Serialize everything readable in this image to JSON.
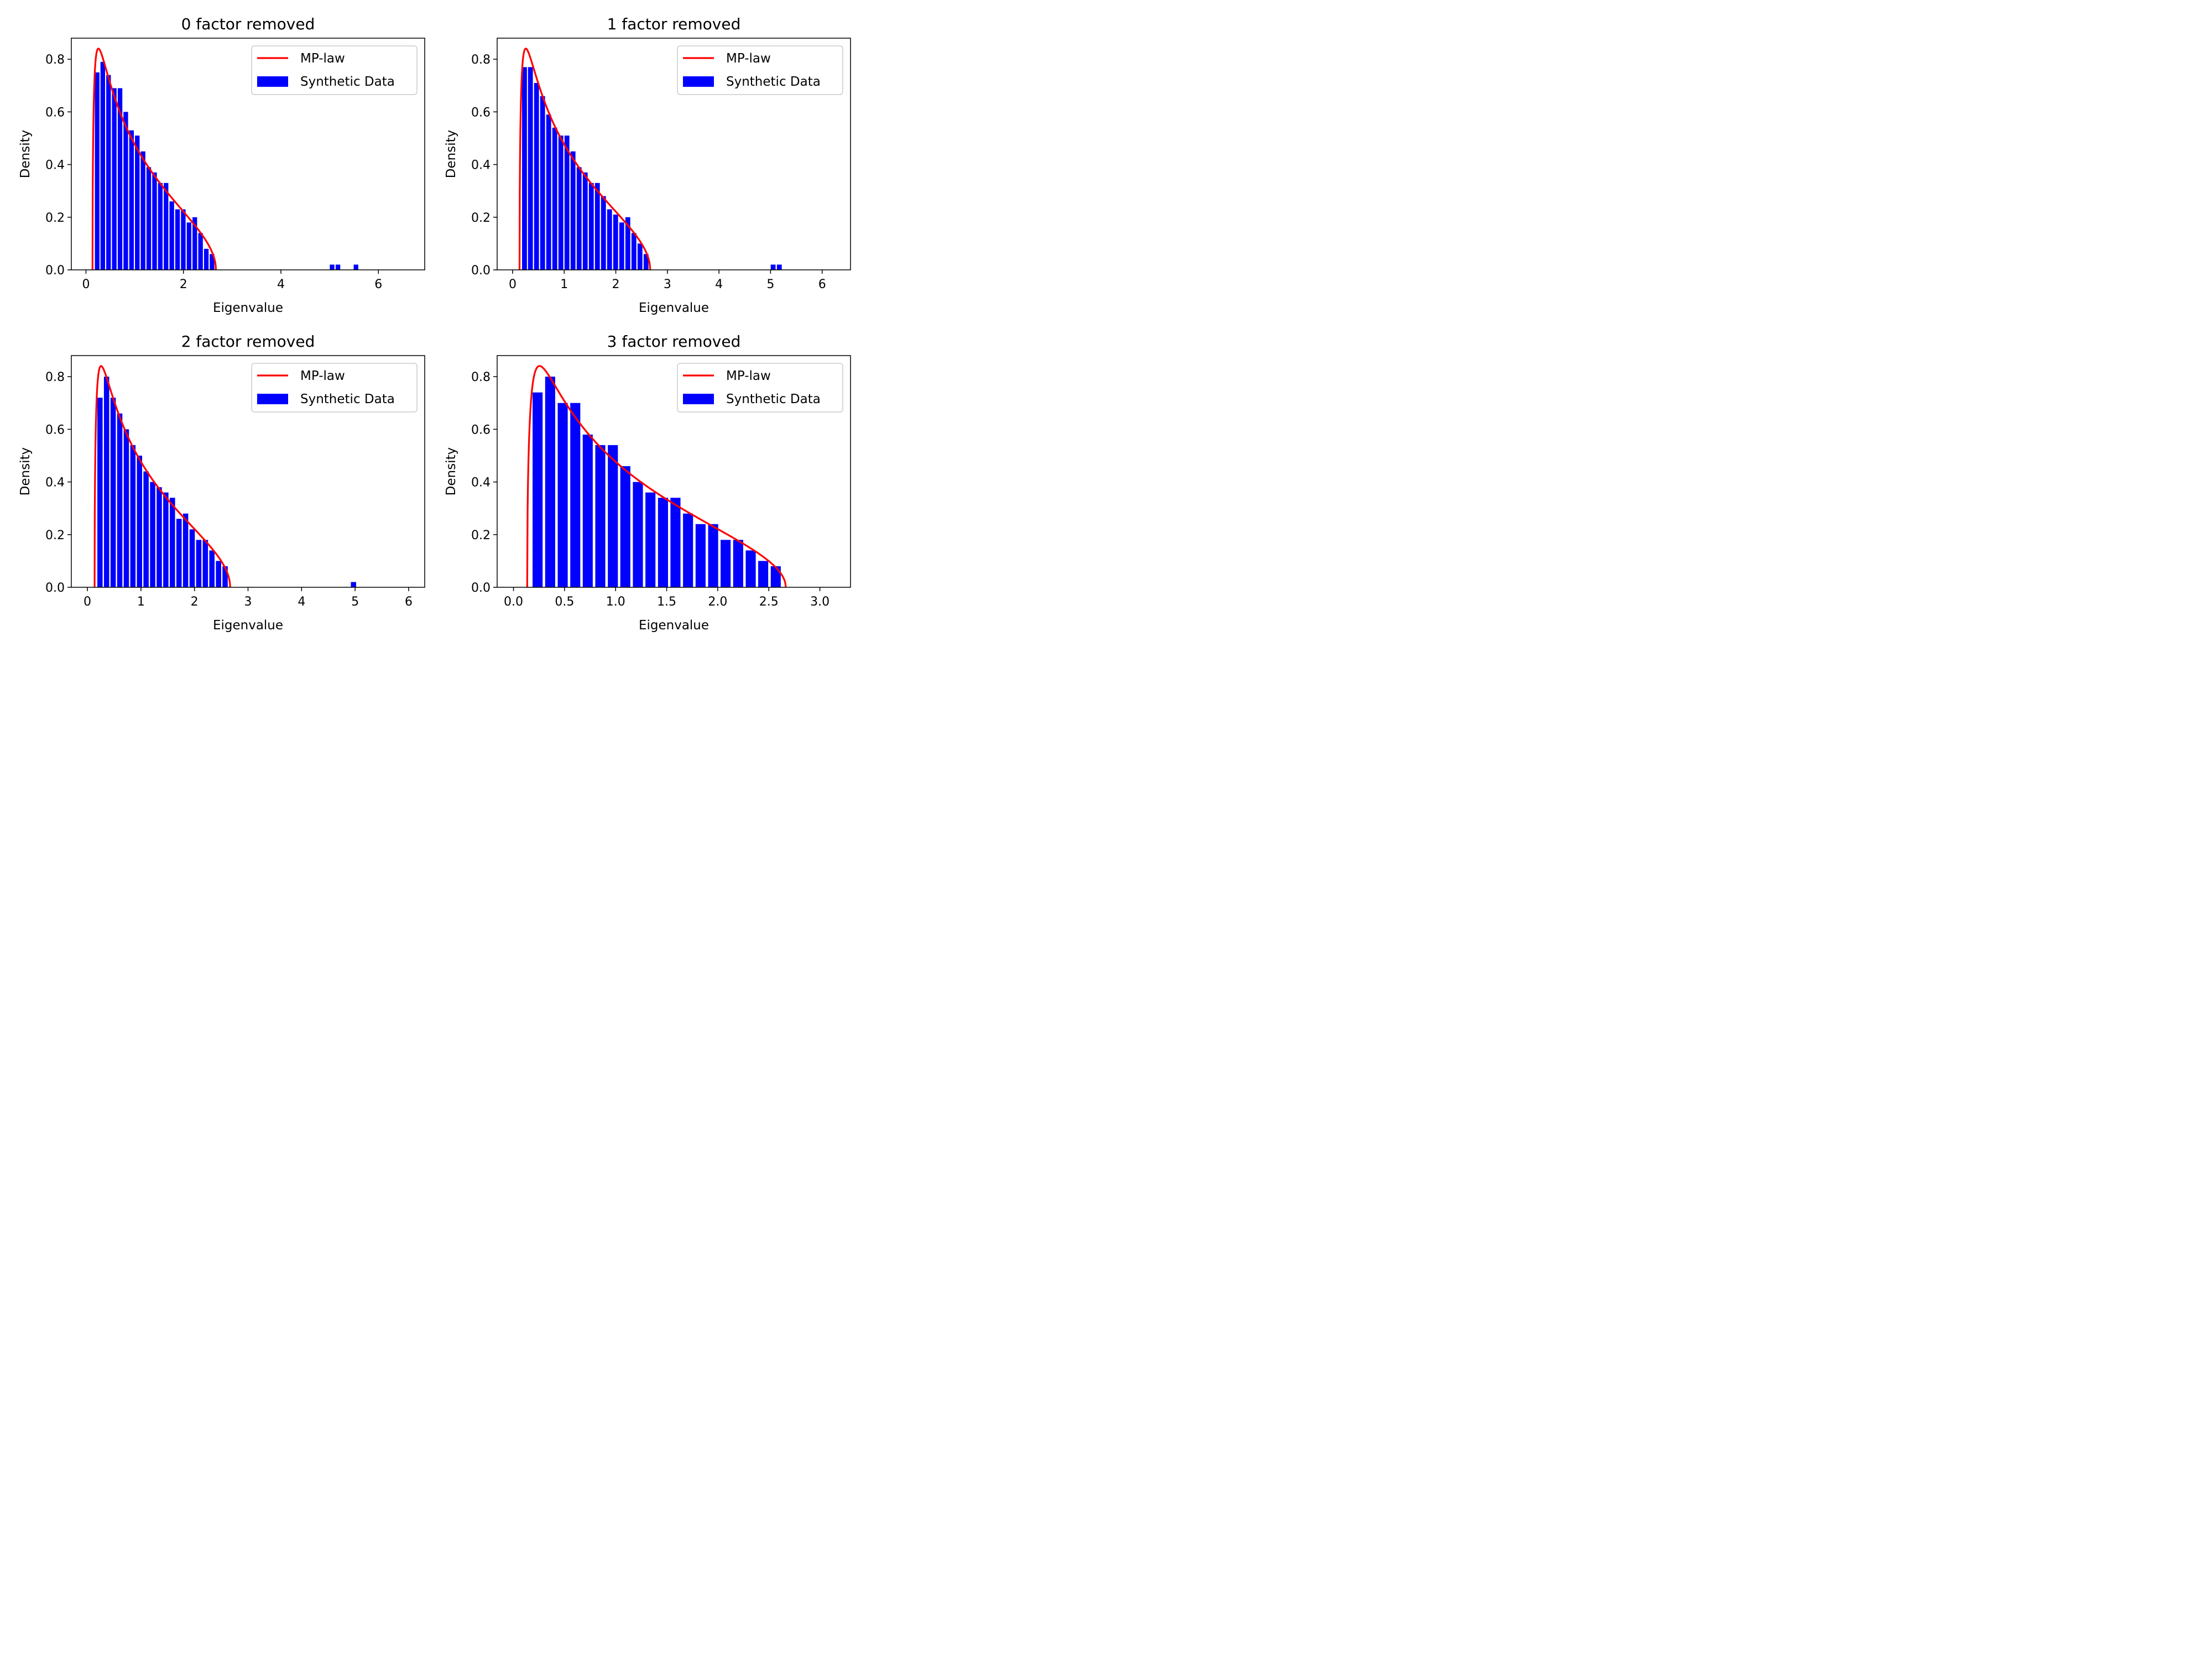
{
  "chart_data": [
    {
      "type": "bar",
      "title": "0 factor removed",
      "xlabel": "Eigenvalue",
      "ylabel": "Density",
      "xlim": [
        -0.3,
        6.95
      ],
      "ylim": [
        0,
        0.88
      ],
      "xticks": [
        0,
        2,
        4,
        6
      ],
      "xtick_labels": [
        "0",
        "2",
        "4",
        "6"
      ],
      "yticks": [
        0.0,
        0.2,
        0.4,
        0.6,
        0.8
      ],
      "ytick_labels": [
        "0.0",
        "0.2",
        "0.4",
        "0.6",
        "0.8"
      ],
      "legend": {
        "position": "upper right",
        "entries": [
          "MP-law",
          "Synthetic Data"
        ]
      },
      "mp_range": [
        0.134,
        2.666
      ],
      "series": [
        {
          "name": "MP-law",
          "kind": "line",
          "color": "#ff0000"
        },
        {
          "name": "Synthetic Data",
          "kind": "bar",
          "color": "#0000ff",
          "bin_width": 0.118,
          "x": [
            0.23,
            0.345,
            0.463,
            0.581,
            0.699,
            0.817,
            0.935,
            1.053,
            1.171,
            1.289,
            1.407,
            1.525,
            1.643,
            1.761,
            1.879,
            1.997,
            2.115,
            2.233,
            2.351,
            2.469,
            2.587,
            5.05,
            5.17,
            5.54
          ],
          "values": [
            0.75,
            0.79,
            0.74,
            0.69,
            0.69,
            0.6,
            0.53,
            0.51,
            0.45,
            0.39,
            0.37,
            0.33,
            0.33,
            0.26,
            0.23,
            0.23,
            0.18,
            0.2,
            0.14,
            0.08,
            0.06,
            0.02,
            0.02,
            0.02
          ]
        }
      ]
    },
    {
      "type": "bar",
      "title": "1 factor removed",
      "xlabel": "Eigenvalue",
      "ylabel": "Density",
      "xlim": [
        -0.3,
        6.55
      ],
      "ylim": [
        0,
        0.88
      ],
      "xticks": [
        0,
        1,
        2,
        3,
        4,
        5,
        6
      ],
      "xtick_labels": [
        "0",
        "1",
        "2",
        "3",
        "4",
        "5",
        "6"
      ],
      "yticks": [
        0.0,
        0.2,
        0.4,
        0.6,
        0.8
      ],
      "ytick_labels": [
        "0.0",
        "0.2",
        "0.4",
        "0.6",
        "0.8"
      ],
      "legend": {
        "position": "upper right",
        "entries": [
          "MP-law",
          "Synthetic Data"
        ]
      },
      "mp_range": [
        0.134,
        2.666
      ],
      "series": [
        {
          "name": "MP-law",
          "kind": "line",
          "color": "#ff0000"
        },
        {
          "name": "Synthetic Data",
          "kind": "bar",
          "color": "#0000ff",
          "bin_width": 0.118,
          "x": [
            0.23,
            0.345,
            0.463,
            0.581,
            0.699,
            0.817,
            0.935,
            1.053,
            1.171,
            1.289,
            1.407,
            1.525,
            1.643,
            1.761,
            1.879,
            1.997,
            2.115,
            2.233,
            2.351,
            2.469,
            2.587,
            5.05,
            5.17
          ],
          "values": [
            0.77,
            0.77,
            0.71,
            0.66,
            0.59,
            0.54,
            0.51,
            0.51,
            0.45,
            0.39,
            0.37,
            0.33,
            0.33,
            0.28,
            0.23,
            0.21,
            0.18,
            0.2,
            0.14,
            0.1,
            0.06,
            0.02,
            0.02
          ]
        }
      ]
    },
    {
      "type": "bar",
      "title": "2 factor removed",
      "xlabel": "Eigenvalue",
      "ylabel": "Density",
      "xlim": [
        -0.3,
        6.3
      ],
      "ylim": [
        0,
        0.88
      ],
      "xticks": [
        0,
        1,
        2,
        3,
        4,
        5,
        6
      ],
      "xtick_labels": [
        "0",
        "1",
        "2",
        "3",
        "4",
        "5",
        "6"
      ],
      "yticks": [
        0.0,
        0.2,
        0.4,
        0.6,
        0.8
      ],
      "ytick_labels": [
        "0.0",
        "0.2",
        "0.4",
        "0.6",
        "0.8"
      ],
      "legend": {
        "position": "upper right",
        "entries": [
          "MP-law",
          "Synthetic Data"
        ]
      },
      "mp_range": [
        0.134,
        2.666
      ],
      "series": [
        {
          "name": "MP-law",
          "kind": "line",
          "color": "#ff0000"
        },
        {
          "name": "Synthetic Data",
          "kind": "bar",
          "color": "#0000ff",
          "bin_width": 0.123,
          "x": [
            0.235,
            0.358,
            0.481,
            0.604,
            0.727,
            0.85,
            0.973,
            1.096,
            1.219,
            1.342,
            1.465,
            1.588,
            1.711,
            1.834,
            1.957,
            2.08,
            2.203,
            2.326,
            2.449,
            2.572,
            4.97
          ],
          "values": [
            0.72,
            0.8,
            0.72,
            0.66,
            0.6,
            0.54,
            0.5,
            0.44,
            0.4,
            0.38,
            0.36,
            0.34,
            0.26,
            0.28,
            0.22,
            0.18,
            0.18,
            0.14,
            0.1,
            0.08,
            0.02
          ]
        }
      ]
    },
    {
      "type": "bar",
      "title": "3 factor removed",
      "xlabel": "Eigenvalue",
      "ylabel": "Density",
      "xlim": [
        -0.16,
        3.3
      ],
      "ylim": [
        0,
        0.88
      ],
      "xticks": [
        0.0,
        0.5,
        1.0,
        1.5,
        2.0,
        2.5,
        3.0
      ],
      "xtick_labels": [
        "0.0",
        "0.5",
        "1.0",
        "1.5",
        "2.0",
        "2.5",
        "3.0"
      ],
      "yticks": [
        0.0,
        0.2,
        0.4,
        0.6,
        0.8
      ],
      "ytick_labels": [
        "0.0",
        "0.2",
        "0.4",
        "0.6",
        "0.8"
      ],
      "legend": {
        "position": "upper right",
        "entries": [
          "MP-law",
          "Synthetic Data"
        ]
      },
      "mp_range": [
        0.134,
        2.666
      ],
      "series": [
        {
          "name": "MP-law",
          "kind": "line",
          "color": "#ff0000"
        },
        {
          "name": "Synthetic Data",
          "kind": "bar",
          "color": "#0000ff",
          "bin_width": 0.1227,
          "x": [
            0.236,
            0.359,
            0.482,
            0.605,
            0.727,
            0.85,
            0.973,
            1.095,
            1.218,
            1.341,
            1.464,
            1.586,
            1.709,
            1.832,
            1.955,
            2.077,
            2.2,
            2.323,
            2.445,
            2.568
          ],
          "values": [
            0.74,
            0.8,
            0.7,
            0.7,
            0.58,
            0.54,
            0.54,
            0.46,
            0.4,
            0.36,
            0.34,
            0.34,
            0.28,
            0.24,
            0.24,
            0.18,
            0.18,
            0.14,
            0.1,
            0.08
          ]
        }
      ]
    }
  ]
}
